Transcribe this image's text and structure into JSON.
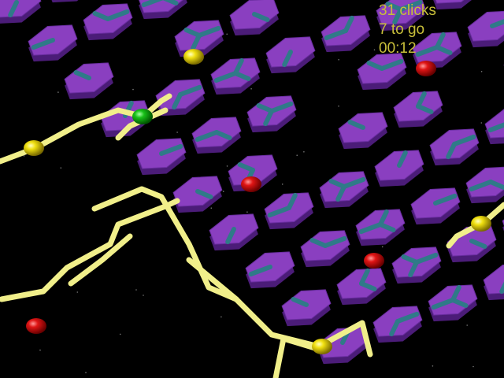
{
  "hud": {
    "clicks": "31 clicks",
    "to_go": "7 to go",
    "timer": "00:12"
  },
  "colors": {
    "background": "#000000",
    "tile_top": "#8a3fc0",
    "tile_side": "#4b1c78",
    "pipe_off": "#2f7a88",
    "pipe_on": "#f1ef8a",
    "hud_text": "#c8bf3a",
    "node_red": "#e01515",
    "node_yellow": "#f0e010",
    "node_green": "#18c018"
  },
  "icons": {
    "tile": "hexagon-tile-icon",
    "pipe": "pipe-segment-icon",
    "node": "sphere-node-icon"
  }
}
